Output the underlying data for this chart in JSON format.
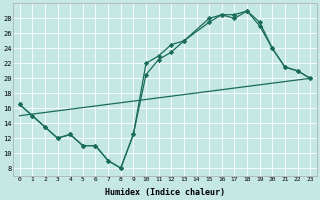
{
  "xlabel": "Humidex (Indice chaleur)",
  "bg_color": "#c5e8e5",
  "line_color": "#1a6b5a",
  "grid_color": "#b8dbd8",
  "xlim": [
    -0.5,
    23.5
  ],
  "ylim": [
    7,
    30
  ],
  "xticks": [
    0,
    1,
    2,
    3,
    4,
    5,
    6,
    7,
    8,
    9,
    10,
    11,
    12,
    13,
    14,
    15,
    16,
    17,
    18,
    19,
    20,
    21,
    22,
    23
  ],
  "yticks": [
    8,
    10,
    12,
    14,
    16,
    18,
    20,
    22,
    24,
    26,
    28
  ],
  "line1_x": [
    0,
    1,
    2,
    3,
    4,
    5,
    6,
    7,
    8,
    9,
    10,
    11,
    12,
    13,
    15,
    16,
    17,
    18,
    19,
    20,
    21,
    22,
    23
  ],
  "line1_y": [
    16.5,
    15.0,
    13.5,
    12.0,
    12.5,
    11.0,
    11.0,
    9.0,
    8.0,
    12.5,
    22.0,
    23.0,
    24.5,
    25.0,
    27.5,
    28.5,
    28.5,
    29.0,
    27.5,
    24.0,
    21.5,
    21.0,
    20.0
  ],
  "line2_x": [
    0,
    1,
    2,
    3,
    4,
    5,
    6,
    7,
    8,
    9,
    10,
    11,
    12,
    13,
    15,
    16,
    17,
    18,
    19,
    20,
    21,
    22,
    23
  ],
  "line2_y": [
    16.5,
    15.0,
    13.5,
    12.0,
    12.5,
    11.0,
    11.0,
    9.0,
    8.0,
    12.5,
    20.5,
    22.5,
    23.5,
    25.0,
    28.0,
    28.5,
    28.0,
    29.0,
    27.0,
    24.0,
    21.5,
    21.0,
    20.0
  ],
  "trend_x": [
    0,
    23
  ],
  "trend_y": [
    15.0,
    20.0
  ]
}
